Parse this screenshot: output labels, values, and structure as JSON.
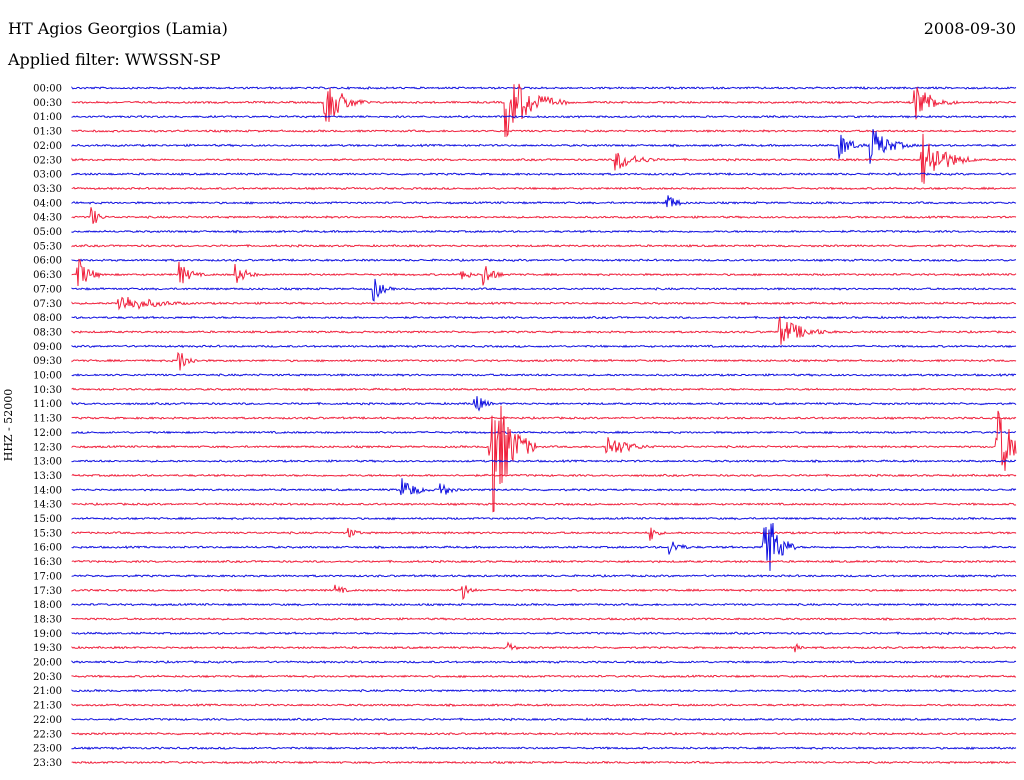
{
  "header": {
    "station": "HT Agios Georgios (Lamia)",
    "date": "2008-09-30",
    "filter": "Applied filter: WWSSN-SP"
  },
  "chart_data": {
    "type": "line",
    "title": "HT Agios Georgios (Lamia)",
    "subtitle": "Applied filter: WWSSN-SP",
    "ylabel": "HHZ - 52000",
    "xlabel": "",
    "grid": false,
    "trace_colors": [
      "#1010e0",
      "#f0203c"
    ],
    "row_labels": [
      "00:00",
      "00:30",
      "01:00",
      "01:30",
      "02:00",
      "02:30",
      "03:00",
      "03:30",
      "04:00",
      "04:30",
      "05:00",
      "05:30",
      "06:00",
      "06:30",
      "07:00",
      "07:30",
      "08:00",
      "08:30",
      "09:00",
      "09:30",
      "10:00",
      "10:30",
      "11:00",
      "11:30",
      "12:00",
      "12:30",
      "13:00",
      "13:30",
      "14:00",
      "14:30",
      "15:00",
      "15:30",
      "16:00",
      "16:30",
      "17:00",
      "17:30",
      "18:00",
      "18:30",
      "19:00",
      "19:30",
      "20:00",
      "20:30",
      "21:00",
      "21:30",
      "22:00",
      "22:30",
      "23:00",
      "23:30"
    ],
    "events": [
      {
        "row": "00:30",
        "minute": 8.0,
        "amplitude": 2.0,
        "duration": 1.5
      },
      {
        "row": "00:30",
        "minute": 13.8,
        "amplitude": 2.6,
        "duration": 2.0
      },
      {
        "row": "00:30",
        "minute": 26.8,
        "amplitude": 1.4,
        "duration": 1.5
      },
      {
        "row": "02:00",
        "minute": 24.4,
        "amplitude": 1.0,
        "duration": 1.0
      },
      {
        "row": "02:00",
        "minute": 25.4,
        "amplitude": 1.4,
        "duration": 1.5
      },
      {
        "row": "02:30",
        "minute": 17.3,
        "amplitude": 0.8,
        "duration": 1.8
      },
      {
        "row": "02:30",
        "minute": 27.0,
        "amplitude": 2.2,
        "duration": 1.8
      },
      {
        "row": "04:00",
        "minute": 18.9,
        "amplitude": 0.8,
        "duration": 0.8
      },
      {
        "row": "04:30",
        "minute": 0.6,
        "amplitude": 0.9,
        "duration": 0.6
      },
      {
        "row": "06:30",
        "minute": 0.2,
        "amplitude": 1.2,
        "duration": 1.0
      },
      {
        "row": "06:30",
        "minute": 3.4,
        "amplitude": 0.9,
        "duration": 1.0
      },
      {
        "row": "06:30",
        "minute": 5.2,
        "amplitude": 0.8,
        "duration": 1.0
      },
      {
        "row": "06:30",
        "minute": 12.4,
        "amplitude": 0.6,
        "duration": 0.6
      },
      {
        "row": "06:30",
        "minute": 13.1,
        "amplitude": 1.0,
        "duration": 0.8
      },
      {
        "row": "07:00",
        "minute": 9.6,
        "amplitude": 0.9,
        "duration": 0.8
      },
      {
        "row": "07:30",
        "minute": 1.5,
        "amplitude": 0.7,
        "duration": 3.0
      },
      {
        "row": "08:30",
        "minute": 22.5,
        "amplitude": 1.1,
        "duration": 2.0
      },
      {
        "row": "09:30",
        "minute": 3.4,
        "amplitude": 0.9,
        "duration": 0.8
      },
      {
        "row": "11:00",
        "minute": 12.8,
        "amplitude": 0.8,
        "duration": 0.8
      },
      {
        "row": "12:30",
        "minute": 13.3,
        "amplitude": 5.8,
        "duration": 1.5
      },
      {
        "row": "12:30",
        "minute": 17.0,
        "amplitude": 0.9,
        "duration": 1.8
      },
      {
        "row": "12:30",
        "minute": 29.4,
        "amplitude": 3.0,
        "duration": 1.3
      },
      {
        "row": "14:00",
        "minute": 10.5,
        "amplitude": 0.9,
        "duration": 1.2
      },
      {
        "row": "14:00",
        "minute": 11.7,
        "amplitude": 0.7,
        "duration": 0.8
      },
      {
        "row": "15:30",
        "minute": 8.8,
        "amplitude": 0.4,
        "duration": 0.8
      },
      {
        "row": "15:30",
        "minute": 18.4,
        "amplitude": 0.6,
        "duration": 0.6
      },
      {
        "row": "16:00",
        "minute": 19.0,
        "amplitude": 0.6,
        "duration": 1.0
      },
      {
        "row": "16:00",
        "minute": 22.0,
        "amplitude": 4.0,
        "duration": 1.0
      },
      {
        "row": "17:30",
        "minute": 8.4,
        "amplitude": 0.4,
        "duration": 0.8
      },
      {
        "row": "17:30",
        "minute": 12.4,
        "amplitude": 0.8,
        "duration": 0.6
      },
      {
        "row": "19:30",
        "minute": 13.9,
        "amplitude": 0.5,
        "duration": 0.5
      },
      {
        "row": "19:30",
        "minute": 23.0,
        "amplitude": 0.5,
        "duration": 0.5
      }
    ]
  }
}
